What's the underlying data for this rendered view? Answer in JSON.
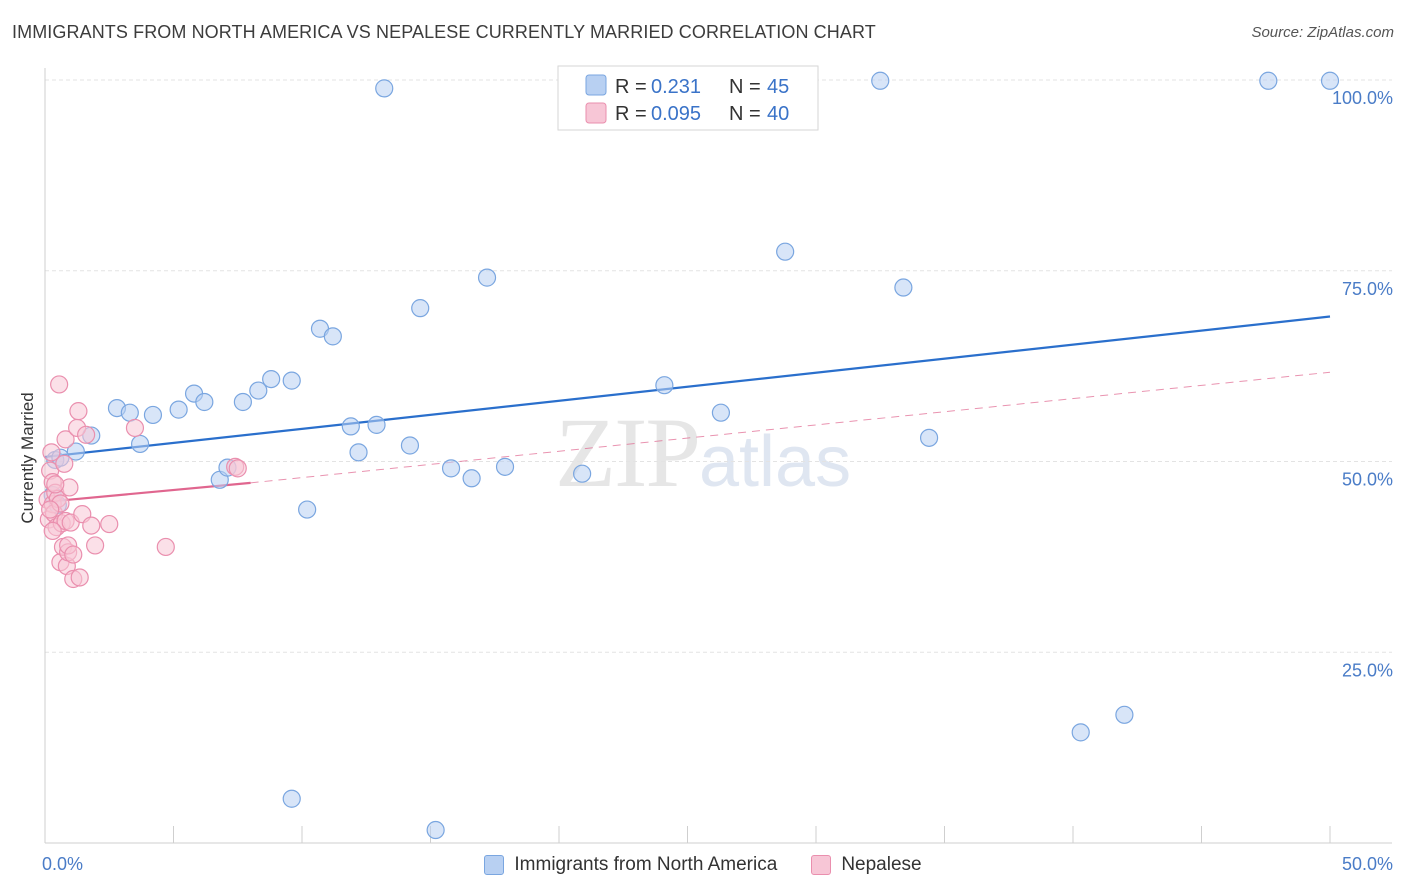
{
  "header": {
    "title": "IMMIGRANTS FROM NORTH AMERICA VS NEPALESE CURRENTLY MARRIED CORRELATION CHART",
    "source": "Source: ZipAtlas.com"
  },
  "watermark": {
    "zip": "ZIP",
    "atlas": "atlas"
  },
  "colors": {
    "blue_fill": "#b8d0f2",
    "blue_stroke": "#7aa6e0",
    "blue_line": "#2a6fcc",
    "pink_fill": "#f7c6d6",
    "pink_stroke": "#ea8fae",
    "pink_line": "#e0668f",
    "grid": "#e3e3e3",
    "tick_text": "#4a7cc7"
  },
  "legend": {
    "rows": [
      {
        "r_label": "R = ",
        "r_value": " 0.231",
        "n_label": "N = ",
        "n_value": "45"
      },
      {
        "r_label": "R = ",
        "r_value": "0.095",
        "n_label": "N = ",
        "n_value": "40"
      }
    ]
  },
  "chart_data": {
    "type": "scatter",
    "title": "IMMIGRANTS FROM NORTH AMERICA VS NEPALESE CURRENTLY MARRIED CORRELATION CHART",
    "xlabel": "",
    "ylabel": "Currently Married",
    "xlim": [
      0,
      50
    ],
    "ylim": [
      0,
      100
    ],
    "x_ticks": [
      "0.0%",
      "50.0%"
    ],
    "y_ticks": [
      {
        "value": 25,
        "label": "25.0%"
      },
      {
        "value": 50,
        "label": "50.0%"
      },
      {
        "value": 75,
        "label": "75.0%"
      },
      {
        "value": 100,
        "label": "100.0%"
      }
    ],
    "grid": true,
    "legend_position": "bottom-center",
    "series": [
      {
        "name": "Immigrants from North America",
        "color": "#7aa6e0",
        "points": [
          [
            1.2,
            51.3
          ],
          [
            1.8,
            53.4
          ],
          [
            2.8,
            57.0
          ],
          [
            3.3,
            56.4
          ],
          [
            3.7,
            52.3
          ],
          [
            4.2,
            56.1
          ],
          [
            5.2,
            56.8
          ],
          [
            5.8,
            58.9
          ],
          [
            6.2,
            57.8
          ],
          [
            6.8,
            47.6
          ],
          [
            7.1,
            49.2
          ],
          [
            7.7,
            57.8
          ],
          [
            8.3,
            59.3
          ],
          [
            8.8,
            60.8
          ],
          [
            9.6,
            5.8
          ],
          [
            9.6,
            60.6
          ],
          [
            10.2,
            43.7
          ],
          [
            10.7,
            67.4
          ],
          [
            11.2,
            66.4
          ],
          [
            11.9,
            54.6
          ],
          [
            12.2,
            51.2
          ],
          [
            12.9,
            54.8
          ],
          [
            13.2,
            98.9
          ],
          [
            14.2,
            52.1
          ],
          [
            14.6,
            70.1
          ],
          [
            15.2,
            1.7
          ],
          [
            15.8,
            49.1
          ],
          [
            16.6,
            47.8
          ],
          [
            17.2,
            74.1
          ],
          [
            17.9,
            49.3
          ],
          [
            20.9,
            48.4
          ],
          [
            24.1,
            60.0
          ],
          [
            26.3,
            56.4
          ],
          [
            28.8,
            77.5
          ],
          [
            32.5,
            99.9
          ],
          [
            33.4,
            72.8
          ],
          [
            34.4,
            53.1
          ],
          [
            40.3,
            14.5
          ],
          [
            42.0,
            16.8
          ],
          [
            47.6,
            99.9
          ],
          [
            50.0,
            99.9
          ],
          [
            0.3,
            45.6
          ],
          [
            0.5,
            44.3
          ],
          [
            0.4,
            50.2
          ],
          [
            0.6,
            50.5
          ]
        ],
        "trend": {
          "x0": 0,
          "y0": 50.6,
          "x1": 50,
          "y1": 69.0
        }
      },
      {
        "name": "Nepalese",
        "color": "#ea8fae",
        "points": [
          [
            0.1,
            45.0
          ],
          [
            0.15,
            42.4
          ],
          [
            0.2,
            48.8
          ],
          [
            0.25,
            51.2
          ],
          [
            0.3,
            44.4
          ],
          [
            0.3,
            47.3
          ],
          [
            0.35,
            43.2
          ],
          [
            0.4,
            45.9
          ],
          [
            0.45,
            41.4
          ],
          [
            0.5,
            45.1
          ],
          [
            0.55,
            60.1
          ],
          [
            0.6,
            44.5
          ],
          [
            0.6,
            36.8
          ],
          [
            0.65,
            41.9
          ],
          [
            0.7,
            38.8
          ],
          [
            0.75,
            49.7
          ],
          [
            0.8,
            52.9
          ],
          [
            0.8,
            42.2
          ],
          [
            0.85,
            36.3
          ],
          [
            0.9,
            38.1
          ],
          [
            0.9,
            39.0
          ],
          [
            0.95,
            46.6
          ],
          [
            1.0,
            42.0
          ],
          [
            1.1,
            37.8
          ],
          [
            1.1,
            34.6
          ],
          [
            1.25,
            54.4
          ],
          [
            1.3,
            56.6
          ],
          [
            1.35,
            34.8
          ],
          [
            1.45,
            43.1
          ],
          [
            1.6,
            53.5
          ],
          [
            1.8,
            41.6
          ],
          [
            1.95,
            39.0
          ],
          [
            2.5,
            41.8
          ],
          [
            3.5,
            54.4
          ],
          [
            4.7,
            38.8
          ],
          [
            7.4,
            49.3
          ],
          [
            7.5,
            49.1
          ],
          [
            0.2,
            43.7
          ],
          [
            0.3,
            40.9
          ],
          [
            0.4,
            47.0
          ]
        ],
        "trend": {
          "x0": 0,
          "y0": 44.7,
          "x1": 8.0,
          "y1": 47.2
        },
        "trend_extension": {
          "x0": 8.0,
          "y0": 47.2,
          "x1": 50,
          "y1": 61.7
        }
      }
    ]
  },
  "bottom_legend": {
    "items": [
      {
        "label": "Immigrants from North America"
      },
      {
        "label": "Nepalese"
      }
    ]
  }
}
